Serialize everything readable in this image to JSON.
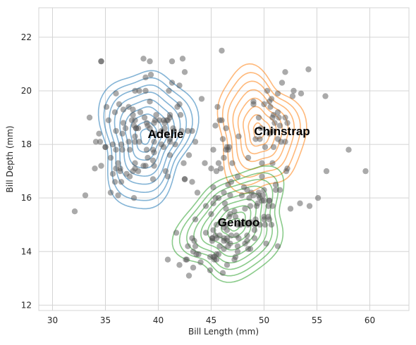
{
  "chart_data": {
    "type": "scatter",
    "xlabel": "Bill Length (mm)",
    "ylabel": "Bill Depth (mm)",
    "xlim": [
      28.7,
      63.7
    ],
    "ylim": [
      11.8,
      23.1
    ],
    "xticks": [
      "30",
      "35",
      "40",
      "45",
      "50",
      "55",
      "60"
    ],
    "yticks": [
      "12",
      "14",
      "16",
      "18",
      "20",
      "22"
    ],
    "grid": true,
    "colors": {
      "adelie": "#1f77b4",
      "chinstrap": "#ff7f0e",
      "gentoo": "#2ca02c",
      "points": "#555555",
      "grid": "#d4d4d4"
    },
    "clusters": [
      {
        "label": "Adelie",
        "x": 40.7,
        "y": 18.4
      },
      {
        "label": "Chinstrap",
        "x": 51.7,
        "y": 18.5
      },
      {
        "label": "Gentoo",
        "x": 47.6,
        "y": 15.1
      }
    ],
    "contours": [
      {
        "group": "adelie",
        "cx": 38.8,
        "cy": 18.3,
        "rx": 4.3,
        "ry": 2.6,
        "rot": -15,
        "levels": 9
      },
      {
        "group": "chinstrap",
        "cx": 49.5,
        "cy": 18.5,
        "rx": 4.0,
        "ry": 2.3,
        "rot": 20,
        "levels": 8
      },
      {
        "group": "gentoo",
        "cx": 47.2,
        "cy": 15.0,
        "rx": 5.3,
        "ry": 1.9,
        "rot": 25,
        "levels": 9
      }
    ],
    "points": [
      [
        34.6,
        21.1
      ],
      [
        36.0,
        19.9
      ],
      [
        37.8,
        18.9
      ],
      [
        38.8,
        20.5
      ],
      [
        39.5,
        17.4
      ],
      [
        40.3,
        18.0
      ],
      [
        36.7,
        19.3
      ],
      [
        39.3,
        20.6
      ],
      [
        38.9,
        17.8
      ],
      [
        39.2,
        19.6
      ],
      [
        34.1,
        18.1
      ],
      [
        42.0,
        20.2
      ],
      [
        37.8,
        17.1
      ],
      [
        37.8,
        17.3
      ],
      [
        41.1,
        17.6
      ],
      [
        38.6,
        21.2
      ],
      [
        34.6,
        21.1
      ],
      [
        36.6,
        17.8
      ],
      [
        38.7,
        19.0
      ],
      [
        42.5,
        20.7
      ],
      [
        34.4,
        18.4
      ],
      [
        46.0,
        21.5
      ],
      [
        37.8,
        18.3
      ],
      [
        37.7,
        18.7
      ],
      [
        35.9,
        19.2
      ],
      [
        38.2,
        18.1
      ],
      [
        38.8,
        17.2
      ],
      [
        35.3,
        18.9
      ],
      [
        40.6,
        18.6
      ],
      [
        40.5,
        17.9
      ],
      [
        37.9,
        18.6
      ],
      [
        40.5,
        18.9
      ],
      [
        39.5,
        16.7
      ],
      [
        37.2,
        18.1
      ],
      [
        39.5,
        17.8
      ],
      [
        40.9,
        18.9
      ],
      [
        36.4,
        17.0
      ],
      [
        39.2,
        21.1
      ],
      [
        38.8,
        20.0
      ],
      [
        42.2,
        18.5
      ],
      [
        37.6,
        19.3
      ],
      [
        39.8,
        19.1
      ],
      [
        36.5,
        18.0
      ],
      [
        40.8,
        18.4
      ],
      [
        36.0,
        18.5
      ],
      [
        44.1,
        19.7
      ],
      [
        37.0,
        16.9
      ],
      [
        39.6,
        18.8
      ],
      [
        41.1,
        19.0
      ],
      [
        37.5,
        18.9
      ],
      [
        42.3,
        21.2
      ],
      [
        39.6,
        17.7
      ],
      [
        40.1,
        18.9
      ],
      [
        35.0,
        17.9
      ],
      [
        42.0,
        19.5
      ],
      [
        34.5,
        18.1
      ],
      [
        41.4,
        18.6
      ],
      [
        39.0,
        17.5
      ],
      [
        40.6,
        18.8
      ],
      [
        36.5,
        16.6
      ],
      [
        37.6,
        19.1
      ],
      [
        35.7,
        16.9
      ],
      [
        41.3,
        21.1
      ],
      [
        37.6,
        17.0
      ],
      [
        41.1,
        18.2
      ],
      [
        36.4,
        17.1
      ],
      [
        41.6,
        18.0
      ],
      [
        35.5,
        16.2
      ],
      [
        41.1,
        19.1
      ],
      [
        35.9,
        16.6
      ],
      [
        41.8,
        19.4
      ],
      [
        33.5,
        19.0
      ],
      [
        39.7,
        18.4
      ],
      [
        39.6,
        17.2
      ],
      [
        45.8,
        18.9
      ],
      [
        35.5,
        17.5
      ],
      [
        42.8,
        18.5
      ],
      [
        40.9,
        16.8
      ],
      [
        37.2,
        19.4
      ],
      [
        36.2,
        16.1
      ],
      [
        42.1,
        19.1
      ],
      [
        34.6,
        17.2
      ],
      [
        42.9,
        17.6
      ],
      [
        36.7,
        18.8
      ],
      [
        35.1,
        19.4
      ],
      [
        37.3,
        17.8
      ],
      [
        41.3,
        20.3
      ],
      [
        36.3,
        19.5
      ],
      [
        36.9,
        18.6
      ],
      [
        38.3,
        19.2
      ],
      [
        38.9,
        18.8
      ],
      [
        35.7,
        18.0
      ],
      [
        41.1,
        18.1
      ],
      [
        34.0,
        17.1
      ],
      [
        39.6,
        18.1
      ],
      [
        36.2,
        17.3
      ],
      [
        40.8,
        18.9
      ],
      [
        38.1,
        18.6
      ],
      [
        40.3,
        18.5
      ],
      [
        33.1,
        16.1
      ],
      [
        43.2,
        18.5
      ],
      [
        35.0,
        17.9
      ],
      [
        41.0,
        20.0
      ],
      [
        37.7,
        16.0
      ],
      [
        37.8,
        20.0
      ],
      [
        37.9,
        18.6
      ],
      [
        39.7,
        18.9
      ],
      [
        38.6,
        17.2
      ],
      [
        38.2,
        20.0
      ],
      [
        38.1,
        17.0
      ],
      [
        32.1,
        15.5
      ],
      [
        40.7,
        17.0
      ],
      [
        37.3,
        16.8
      ],
      [
        39.0,
        18.7
      ],
      [
        39.2,
        18.6
      ],
      [
        36.6,
        18.4
      ],
      [
        36.0,
        17.8
      ],
      [
        37.8,
        18.1
      ],
      [
        36.0,
        17.1
      ],
      [
        41.5,
        18.5
      ],
      [
        46.5,
        17.9
      ],
      [
        50.0,
        19.5
      ],
      [
        51.3,
        19.2
      ],
      [
        45.4,
        18.7
      ],
      [
        52.7,
        19.8
      ],
      [
        45.2,
        17.8
      ],
      [
        46.1,
        18.2
      ],
      [
        51.3,
        18.2
      ],
      [
        46.0,
        18.9
      ],
      [
        51.3,
        19.9
      ],
      [
        46.6,
        17.8
      ],
      [
        51.7,
        20.3
      ],
      [
        47.0,
        17.3
      ],
      [
        52.0,
        18.1
      ],
      [
        45.9,
        17.1
      ],
      [
        50.5,
        19.6
      ],
      [
        50.3,
        20.0
      ],
      [
        58.0,
        17.8
      ],
      [
        46.4,
        18.6
      ],
      [
        49.2,
        18.2
      ],
      [
        42.4,
        17.3
      ],
      [
        48.5,
        17.5
      ],
      [
        43.2,
        16.6
      ],
      [
        50.6,
        19.4
      ],
      [
        46.7,
        17.9
      ],
      [
        52.0,
        19.0
      ],
      [
        50.5,
        18.4
      ],
      [
        49.5,
        19.0
      ],
      [
        46.4,
        17.8
      ],
      [
        52.8,
        20.0
      ],
      [
        54.2,
        20.8
      ],
      [
        42.5,
        16.7
      ],
      [
        51.0,
        18.8
      ],
      [
        49.7,
        18.6
      ],
      [
        47.5,
        16.8
      ],
      [
        47.6,
        18.3
      ],
      [
        52.0,
        20.7
      ],
      [
        46.9,
        16.6
      ],
      [
        53.5,
        19.9
      ],
      [
        49.0,
        19.5
      ],
      [
        46.2,
        17.5
      ],
      [
        50.9,
        19.1
      ],
      [
        45.5,
        17.0
      ],
      [
        50.9,
        17.9
      ],
      [
        50.8,
        18.5
      ],
      [
        50.1,
        17.9
      ],
      [
        49.0,
        19.6
      ],
      [
        51.5,
        18.7
      ],
      [
        49.8,
        17.3
      ],
      [
        48.1,
        16.4
      ],
      [
        51.4,
        19.0
      ],
      [
        45.7,
        17.3
      ],
      [
        50.7,
        19.7
      ],
      [
        42.5,
        16.7
      ],
      [
        52.2,
        18.8
      ],
      [
        45.6,
        19.4
      ],
      [
        49.6,
        18.2
      ],
      [
        50.8,
        19.0
      ],
      [
        55.8,
        19.8
      ],
      [
        43.5,
        18.1
      ],
      [
        46.1,
        13.2
      ],
      [
        50.0,
        16.3
      ],
      [
        48.7,
        14.1
      ],
      [
        50.0,
        15.2
      ],
      [
        47.6,
        14.5
      ],
      [
        46.5,
        13.5
      ],
      [
        45.4,
        14.6
      ],
      [
        46.7,
        15.3
      ],
      [
        43.3,
        13.4
      ],
      [
        46.8,
        15.4
      ],
      [
        40.9,
        13.7
      ],
      [
        49.0,
        16.1
      ],
      [
        45.5,
        13.7
      ],
      [
        48.4,
        14.6
      ],
      [
        45.8,
        14.6
      ],
      [
        49.3,
        15.7
      ],
      [
        42.0,
        13.5
      ],
      [
        49.2,
        15.2
      ],
      [
        46.2,
        14.5
      ],
      [
        48.7,
        15.1
      ],
      [
        50.2,
        14.3
      ],
      [
        45.1,
        14.5
      ],
      [
        46.5,
        14.5
      ],
      [
        46.3,
        15.8
      ],
      [
        42.9,
        13.1
      ],
      [
        46.1,
        15.1
      ],
      [
        47.8,
        15.0
      ],
      [
        48.2,
        14.3
      ],
      [
        50.0,
        15.3
      ],
      [
        47.3,
        15.3
      ],
      [
        42.8,
        14.2
      ],
      [
        45.1,
        14.5
      ],
      [
        59.6,
        17.0
      ],
      [
        49.1,
        14.8
      ],
      [
        48.4,
        16.3
      ],
      [
        42.6,
        13.7
      ],
      [
        44.4,
        17.3
      ],
      [
        44.0,
        13.6
      ],
      [
        48.7,
        15.7
      ],
      [
        42.7,
        13.7
      ],
      [
        49.6,
        16.0
      ],
      [
        45.3,
        13.7
      ],
      [
        49.6,
        15.0
      ],
      [
        50.5,
        15.9
      ],
      [
        43.6,
        13.9
      ],
      [
        45.5,
        13.9
      ],
      [
        50.5,
        15.9
      ],
      [
        44.9,
        13.3
      ],
      [
        45.2,
        15.8
      ],
      [
        46.6,
        14.2
      ],
      [
        48.5,
        14.1
      ],
      [
        45.1,
        14.4
      ],
      [
        50.1,
        15.0
      ],
      [
        46.5,
        14.4
      ],
      [
        45.0,
        15.4
      ],
      [
        43.8,
        13.9
      ],
      [
        45.5,
        15.0
      ],
      [
        43.2,
        14.5
      ],
      [
        50.4,
        15.3
      ],
      [
        45.3,
        13.8
      ],
      [
        46.2,
        14.9
      ],
      [
        45.7,
        13.9
      ],
      [
        54.3,
        15.7
      ],
      [
        45.8,
        14.2
      ],
      [
        49.8,
        16.8
      ],
      [
        46.2,
        14.4
      ],
      [
        49.5,
        16.2
      ],
      [
        43.5,
        14.2
      ],
      [
        50.7,
        15.0
      ],
      [
        47.7,
        15.0
      ],
      [
        46.4,
        15.6
      ],
      [
        48.2,
        15.6
      ],
      [
        46.5,
        14.8
      ],
      [
        46.4,
        15.0
      ],
      [
        48.6,
        16.0
      ],
      [
        47.5,
        14.2
      ],
      [
        51.1,
        16.3
      ],
      [
        45.2,
        13.8
      ],
      [
        45.2,
        16.4
      ],
      [
        49.1,
        14.5
      ],
      [
        52.5,
        15.6
      ],
      [
        47.4,
        14.6
      ],
      [
        50.0,
        15.9
      ],
      [
        44.9,
        13.8
      ],
      [
        50.8,
        17.3
      ],
      [
        43.4,
        14.4
      ],
      [
        51.3,
        14.2
      ],
      [
        47.5,
        14.0
      ],
      [
        52.1,
        17.0
      ],
      [
        47.5,
        15.0
      ],
      [
        52.2,
        17.1
      ],
      [
        45.5,
        14.5
      ],
      [
        49.5,
        16.1
      ],
      [
        44.5,
        14.7
      ],
      [
        50.8,
        15.7
      ],
      [
        49.4,
        15.8
      ],
      [
        46.9,
        14.6
      ],
      [
        48.4,
        14.4
      ],
      [
        51.1,
        16.5
      ],
      [
        48.5,
        15.0
      ],
      [
        55.9,
        17.0
      ],
      [
        47.2,
        15.5
      ],
      [
        49.1,
        15.0
      ],
      [
        47.3,
        13.8
      ],
      [
        46.8,
        16.1
      ],
      [
        41.7,
        14.7
      ],
      [
        53.4,
        15.8
      ],
      [
        43.3,
        14.0
      ],
      [
        48.1,
        15.1
      ],
      [
        50.5,
        15.2
      ],
      [
        49.8,
        15.9
      ],
      [
        43.5,
        15.2
      ],
      [
        51.5,
        16.3
      ],
      [
        46.2,
        14.1
      ],
      [
        55.1,
        16.0
      ],
      [
        44.5,
        15.7
      ],
      [
        48.8,
        16.2
      ],
      [
        47.2,
        13.7
      ],
      [
        46.8,
        14.3
      ],
      [
        50.4,
        15.7
      ],
      [
        45.2,
        14.8
      ],
      [
        49.9,
        16.1
      ],
      [
        45.0,
        17.1
      ],
      [
        43.7,
        16.2
      ],
      [
        46.6,
        16.5
      ],
      [
        51.6,
        18.1
      ],
      [
        45.7,
        16.0
      ],
      [
        45.4,
        16.0
      ],
      [
        46.2,
        16.2
      ],
      [
        47.9,
        16.1
      ]
    ]
  }
}
